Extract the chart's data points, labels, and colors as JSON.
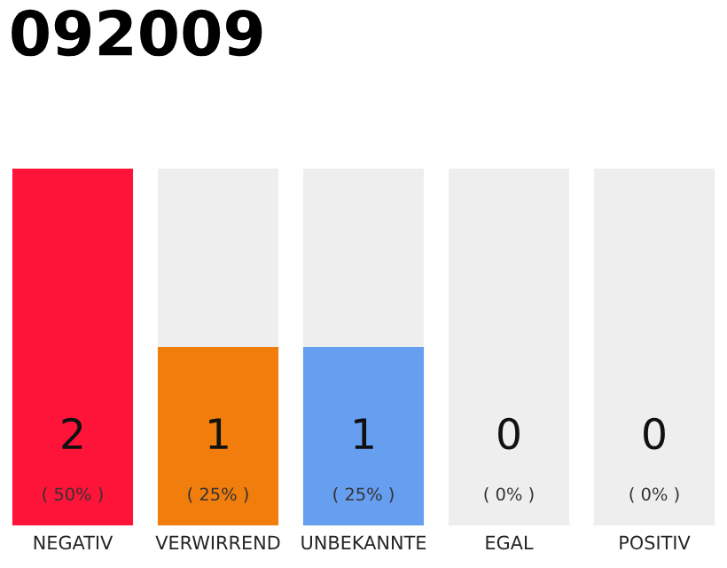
{
  "chart_data": {
    "type": "bar",
    "title": "092009",
    "categories": [
      "NEGATIV",
      "VERWIRREND",
      "UNBEKANNTE",
      "EGAL",
      "POSITIV"
    ],
    "stacked": true,
    "ylim": [
      0,
      2
    ],
    "tick_labels": "x",
    "series": [
      {
        "colors": [
          "#ff1439",
          "#f07d0c",
          "#669ef0",
          "#7ec46a",
          "#22a845"
        ],
        "values": [
          2,
          1,
          1,
          0,
          0
        ],
        "value_labels": [
          "2\n( 50% )",
          "1\n( 25% )",
          "1\n( 25% )",
          "0\n( 0% )",
          "0\n( 0% )"
        ]
      },
      {
        "color": "#eeeeee",
        "values": [
          0,
          1,
          1,
          2,
          2
        ]
      }
    ]
  }
}
